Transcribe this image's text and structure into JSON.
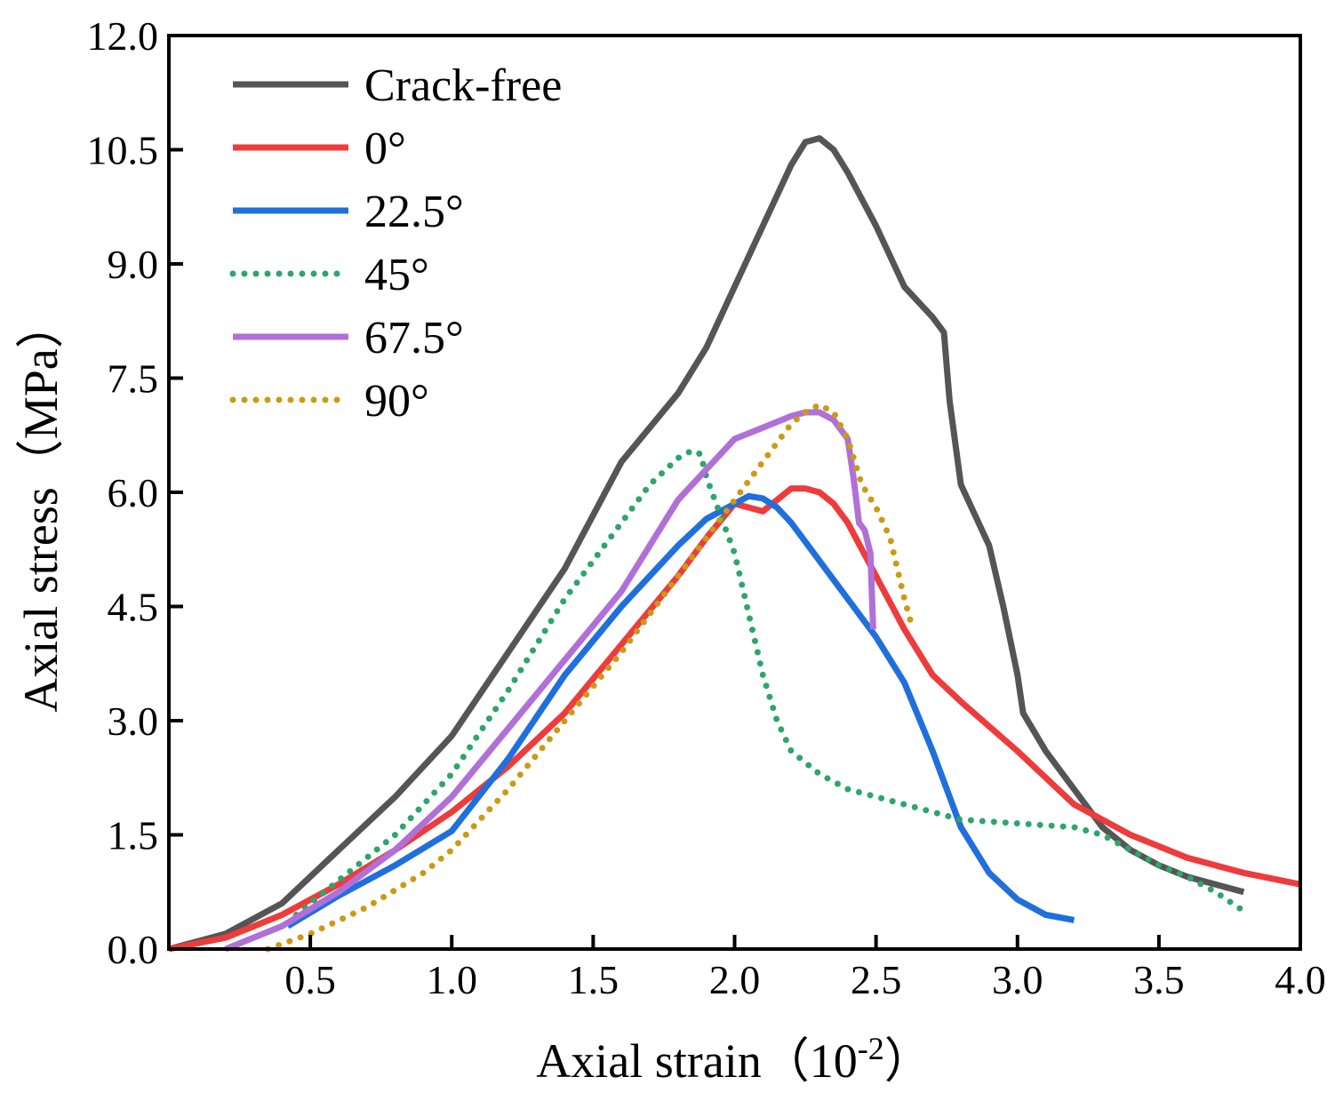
{
  "chart_data": {
    "type": "line",
    "xlabel": "Axial strain（10",
    "xlabel_sup": "-2",
    "xlabel_end": "）",
    "ylabel": "Axial stress（MPa）",
    "xlim": [
      0,
      4.0
    ],
    "ylim": [
      0,
      12.0
    ],
    "x_ticks": [
      0.5,
      1.0,
      1.5,
      2.0,
      2.5,
      3.0,
      3.5,
      4.0
    ],
    "x_tick_labels": [
      "0.5",
      "1.0",
      "1.5",
      "2.0",
      "2.5",
      "3.0",
      "3.5",
      "4.0"
    ],
    "y_ticks": [
      0,
      1.5,
      3.0,
      4.5,
      6.0,
      7.5,
      9.0,
      10.5,
      12.0
    ],
    "y_tick_labels": [
      "0.0",
      "1.5",
      "3.0",
      "4.5",
      "6.0",
      "7.5",
      "9.0",
      "10.5",
      "12.0"
    ],
    "grid": false,
    "legend_position": "top-left",
    "series": [
      {
        "name": "Crack-free",
        "color": "#555555",
        "style": "solid",
        "x": [
          0.0,
          0.2,
          0.4,
          0.6,
          0.8,
          1.0,
          1.2,
          1.4,
          1.6,
          1.8,
          1.9,
          2.0,
          2.1,
          2.2,
          2.25,
          2.3,
          2.35,
          2.4,
          2.5,
          2.6,
          2.7,
          2.74,
          2.76,
          2.8,
          2.85,
          2.9,
          2.95,
          3.0,
          3.02,
          3.1,
          3.2,
          3.3,
          3.4,
          3.5,
          3.6,
          3.7,
          3.8
        ],
        "y": [
          0.0,
          0.2,
          0.6,
          1.3,
          2.0,
          2.8,
          3.9,
          5.0,
          6.4,
          7.3,
          7.9,
          8.7,
          9.5,
          10.3,
          10.6,
          10.65,
          10.5,
          10.2,
          9.5,
          8.7,
          8.3,
          8.1,
          7.2,
          6.1,
          5.7,
          5.3,
          4.5,
          3.6,
          3.1,
          2.6,
          2.1,
          1.6,
          1.3,
          1.1,
          0.95,
          0.85,
          0.75
        ]
      },
      {
        "name": "0°",
        "color": "#ee3b3b",
        "style": "solid",
        "x": [
          0.0,
          0.2,
          0.4,
          0.6,
          0.8,
          1.0,
          1.2,
          1.4,
          1.6,
          1.8,
          1.9,
          2.0,
          2.05,
          2.1,
          2.15,
          2.2,
          2.25,
          2.3,
          2.35,
          2.4,
          2.5,
          2.6,
          2.7,
          2.8,
          3.0,
          3.2,
          3.4,
          3.6,
          3.8,
          4.0
        ],
        "y": [
          0.0,
          0.15,
          0.45,
          0.85,
          1.3,
          1.8,
          2.4,
          3.1,
          4.0,
          4.9,
          5.4,
          5.85,
          5.8,
          5.75,
          5.9,
          6.05,
          6.05,
          6.0,
          5.85,
          5.6,
          4.9,
          4.2,
          3.6,
          3.25,
          2.6,
          1.9,
          1.5,
          1.2,
          1.0,
          0.85
        ]
      },
      {
        "name": "22.5°",
        "color": "#1f6fdd",
        "style": "solid",
        "x": [
          0.42,
          0.6,
          0.8,
          1.0,
          1.2,
          1.4,
          1.6,
          1.8,
          1.9,
          2.0,
          2.05,
          2.1,
          2.15,
          2.2,
          2.3,
          2.4,
          2.5,
          2.6,
          2.7,
          2.8,
          2.9,
          3.0,
          3.1,
          3.2
        ],
        "y": [
          0.3,
          0.7,
          1.1,
          1.55,
          2.5,
          3.6,
          4.5,
          5.3,
          5.65,
          5.85,
          5.95,
          5.92,
          5.8,
          5.6,
          5.1,
          4.6,
          4.1,
          3.5,
          2.6,
          1.6,
          1.0,
          0.65,
          0.45,
          0.38
        ]
      },
      {
        "name": "45°",
        "color": "#2ea56b",
        "style": "dotted",
        "x": [
          0.45,
          0.6,
          0.8,
          1.0,
          1.2,
          1.4,
          1.6,
          1.7,
          1.8,
          1.85,
          1.88,
          1.9,
          1.95,
          2.0,
          2.05,
          2.1,
          2.15,
          2.2,
          2.3,
          2.4,
          2.6,
          2.8,
          3.0,
          3.2,
          3.3,
          3.4,
          3.5,
          3.6,
          3.7,
          3.8
        ],
        "y": [
          0.45,
          0.9,
          1.5,
          2.3,
          3.4,
          4.6,
          5.6,
          6.1,
          6.45,
          6.55,
          6.5,
          6.2,
          5.7,
          5.2,
          4.4,
          3.6,
          3.0,
          2.6,
          2.3,
          2.1,
          1.9,
          1.7,
          1.65,
          1.6,
          1.5,
          1.3,
          1.1,
          0.95,
          0.75,
          0.5
        ]
      },
      {
        "name": "67.5°",
        "color": "#b070d8",
        "style": "solid",
        "x": [
          0.2,
          0.4,
          0.6,
          0.8,
          1.0,
          1.2,
          1.4,
          1.6,
          1.7,
          1.8,
          1.9,
          2.0,
          2.1,
          2.2,
          2.25,
          2.3,
          2.35,
          2.4,
          2.42,
          2.44,
          2.46,
          2.48,
          2.49
        ],
        "y": [
          0.0,
          0.3,
          0.75,
          1.3,
          2.0,
          2.9,
          3.8,
          4.7,
          5.3,
          5.9,
          6.3,
          6.7,
          6.85,
          7.0,
          7.05,
          7.05,
          6.95,
          6.7,
          6.2,
          5.6,
          5.5,
          5.2,
          4.2
        ]
      },
      {
        "name": "90°",
        "color": "#cc9a14",
        "style": "dotted",
        "x": [
          0.35,
          0.5,
          0.7,
          0.9,
          1.0,
          1.2,
          1.4,
          1.6,
          1.8,
          2.0,
          2.1,
          2.2,
          2.25,
          2.3,
          2.35,
          2.4,
          2.45,
          2.5,
          2.55,
          2.6,
          2.63
        ],
        "y": [
          0.0,
          0.2,
          0.55,
          1.0,
          1.3,
          2.1,
          3.0,
          3.9,
          4.9,
          5.9,
          6.4,
          6.9,
          7.05,
          7.15,
          7.05,
          6.7,
          6.1,
          5.8,
          5.4,
          4.6,
          4.2
        ]
      }
    ]
  }
}
